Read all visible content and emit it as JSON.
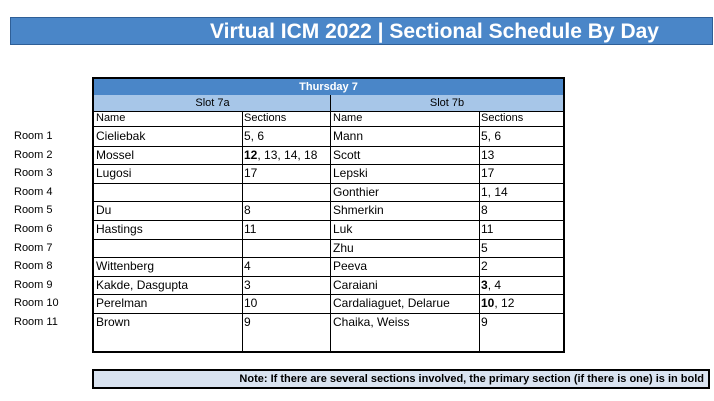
{
  "header": {
    "title": "Virtual ICM 2022 | Sectional Schedule By Day"
  },
  "schedule": {
    "day": "Thursday 7",
    "slots": [
      {
        "label": "Slot 7a",
        "name_header": "Name",
        "sections_header": "Sections"
      },
      {
        "label": "Slot 7b",
        "name_header": "Name",
        "sections_header": "Sections"
      }
    ],
    "rooms": [
      "Room 1",
      "Room 2",
      "Room 3",
      "Room 4",
      "Room 5",
      "Room 6",
      "Room 7",
      "Room 8",
      "Room 9",
      "Room 10",
      "Room 11"
    ],
    "rows": [
      {
        "a_name": "Cieliebak",
        "a_bold": "",
        "a_rest": "5, 6",
        "b_name": "Mann",
        "b_bold": "",
        "b_rest": "5, 6"
      },
      {
        "a_name": "Mossel",
        "a_bold": "12",
        "a_rest": ", 13, 14, 18",
        "b_name": "Scott",
        "b_bold": "",
        "b_rest": "13"
      },
      {
        "a_name": "Lugosi",
        "a_bold": "",
        "a_rest": "17",
        "b_name": "Lepski",
        "b_bold": "",
        "b_rest": "17"
      },
      {
        "a_name": "",
        "a_bold": "",
        "a_rest": "",
        "b_name": "Gonthier",
        "b_bold": "",
        "b_rest": "1, 14"
      },
      {
        "a_name": "Du",
        "a_bold": "",
        "a_rest": "8",
        "b_name": "Shmerkin",
        "b_bold": "",
        "b_rest": "8"
      },
      {
        "a_name": "Hastings",
        "a_bold": "",
        "a_rest": "11",
        "b_name": "Luk",
        "b_bold": "",
        "b_rest": "11"
      },
      {
        "a_name": "",
        "a_bold": "",
        "a_rest": "",
        "b_name": "Zhu",
        "b_bold": "",
        "b_rest": "5"
      },
      {
        "a_name": "Wittenberg",
        "a_bold": "",
        "a_rest": "4",
        "b_name": "Peeva",
        "b_bold": "",
        "b_rest": "2"
      },
      {
        "a_name": "Kakde, Dasgupta",
        "a_bold": "",
        "a_rest": "3",
        "b_name": "Caraiani",
        "b_bold": "3",
        "b_rest": ", 4"
      },
      {
        "a_name": "Perelman",
        "a_bold": "",
        "a_rest": "10",
        "b_name": "Cardaliaguet, Delarue",
        "b_bold": "10",
        "b_rest": ", 12"
      },
      {
        "a_name": "Brown",
        "a_bold": "",
        "a_rest": "9",
        "b_name": "Chaika, Weiss",
        "b_bold": "",
        "b_rest": "9"
      }
    ]
  },
  "note": "Note: If there are several sections involved, the primary section (if there is one) is in bold",
  "colors": {
    "banner": "#4a86c8",
    "slot_header": "#a7c6e8",
    "note_bg": "#d9e3f0"
  }
}
